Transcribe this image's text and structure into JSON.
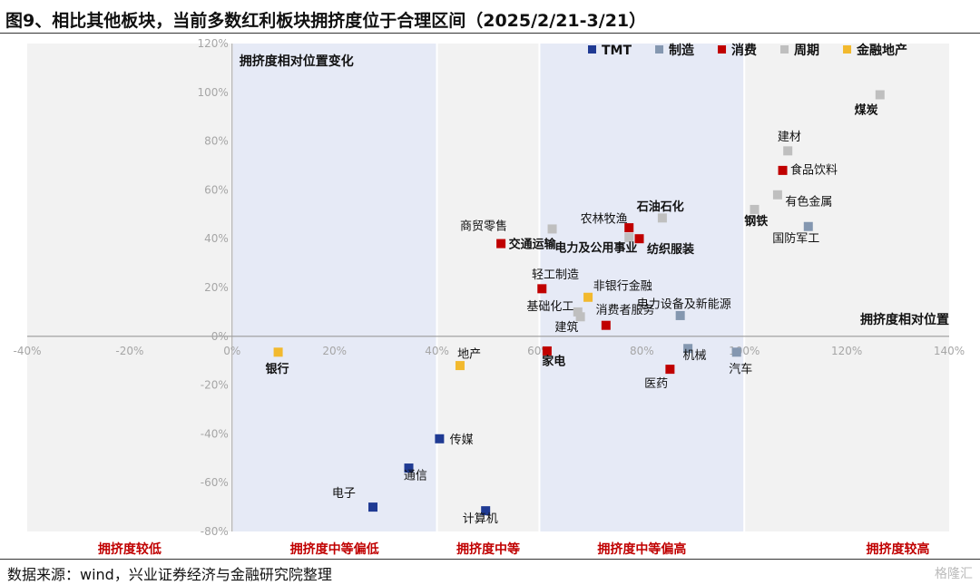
{
  "title": "图9、相比其他板块，当前多数红利板块拥挤度位于合理区间（2025/2/21-3/21）",
  "source": "数据来源：wind，兴业证券经济与金融研究院整理",
  "watermark": "格隆汇",
  "chart_data": {
    "type": "scatter",
    "xlim": [
      -40,
      140
    ],
    "ylim": [
      -80,
      120
    ],
    "x_ticks": [
      -40,
      -20,
      0,
      20,
      40,
      60,
      80,
      100,
      120,
      140
    ],
    "y_ticks": [
      -80,
      -60,
      -40,
      -20,
      0,
      20,
      40,
      60,
      80,
      100,
      120
    ],
    "tick_suffix": "%",
    "ylabel": "拥挤度相对位置变化",
    "xlabel": "拥挤度相对位置",
    "legend_position": "top-right",
    "bands": [
      {
        "from": 0,
        "to": 40,
        "shaded": true,
        "label": "拥挤度中等偏低"
      },
      {
        "from": 60,
        "to": 100,
        "shaded": true,
        "label": "拥挤度中等偏高"
      }
    ],
    "band_labels": [
      {
        "x": -20,
        "text": "拥挤度较低"
      },
      {
        "x": 20,
        "text": "拥挤度中等偏低"
      },
      {
        "x": 50,
        "text": "拥挤度中等"
      },
      {
        "x": 80,
        "text": "拥挤度中等偏高"
      },
      {
        "x": 130,
        "text": "拥挤度较高"
      }
    ],
    "series": [
      {
        "name": "TMT",
        "color": "#1f3a93",
        "points": [
          {
            "x": 40.5,
            "y": -42,
            "label": "传媒",
            "bold": false,
            "lx": 2,
            "ly": 0
          },
          {
            "x": 34.5,
            "y": -54,
            "label": "通信",
            "bold": false,
            "lx": -1,
            "ly": -2.8
          },
          {
            "x": 27.5,
            "y": -70,
            "label": "电子",
            "bold": false,
            "lx": -8,
            "ly": 6
          },
          {
            "x": 49.5,
            "y": -71.5,
            "label": "计算机",
            "bold": false,
            "lx": -4.5,
            "ly": -3
          }
        ]
      },
      {
        "name": "制造",
        "color": "#8497b0",
        "points": [
          {
            "x": 89,
            "y": -5,
            "label": "机械",
            "bold": false,
            "lx": -1,
            "ly": -2.5
          },
          {
            "x": 98.5,
            "y": -6.5,
            "label": "汽车",
            "bold": false,
            "lx": -1.5,
            "ly": -6.5
          },
          {
            "x": 112.5,
            "y": 45,
            "label": "国防军工",
            "bold": false,
            "lx": -7,
            "ly": -4.5
          },
          {
            "x": 87.5,
            "y": 8.5,
            "label": "电力设备及新能源",
            "bold": false,
            "lx": -8.5,
            "ly": 5
          }
        ]
      },
      {
        "name": "消费",
        "color": "#c00000",
        "points": [
          {
            "x": 107.5,
            "y": 68,
            "label": "食品饮料",
            "bold": false,
            "lx": 1.5,
            "ly": 0.5
          },
          {
            "x": 52.5,
            "y": 38,
            "label": "交通运输",
            "bold": true,
            "lx": 1.5,
            "ly": 0
          },
          {
            "x": 77.5,
            "y": 44.5,
            "label": "农林牧渔",
            "bold": false,
            "lx": -9.5,
            "ly": 4
          },
          {
            "x": 79.5,
            "y": 40,
            "label": "纺织服装",
            "bold": true,
            "lx": 1.5,
            "ly": -4
          },
          {
            "x": 60.5,
            "y": 19.5,
            "label": "轻工制造",
            "bold": false,
            "lx": -2,
            "ly": 6
          },
          {
            "x": 61.5,
            "y": -6,
            "label": "家电",
            "bold": true,
            "lx": -1,
            "ly": -4
          },
          {
            "x": 73,
            "y": 4.5,
            "label": "消费者服务",
            "bold": false,
            "lx": -2,
            "ly": 6.5
          },
          {
            "x": 85.5,
            "y": -13.5,
            "label": "医药",
            "bold": false,
            "lx": -5,
            "ly": -5.5
          }
        ]
      },
      {
        "name": "周期",
        "color": "#bfbfbf",
        "points": [
          {
            "x": 126.5,
            "y": 99,
            "label": "煤炭",
            "bold": true,
            "lx": -5,
            "ly": -6
          },
          {
            "x": 108.5,
            "y": 76,
            "label": "建材",
            "bold": false,
            "lx": -2,
            "ly": 6
          },
          {
            "x": 106.5,
            "y": 58,
            "label": "有色金属",
            "bold": false,
            "lx": 1.5,
            "ly": -2.5
          },
          {
            "x": 102,
            "y": 52,
            "label": "钢铁",
            "bold": true,
            "lx": -2,
            "ly": -4.5
          },
          {
            "x": 84,
            "y": 48.5,
            "label": "石油石化",
            "bold": true,
            "lx": -5,
            "ly": 5
          },
          {
            "x": 62.5,
            "y": 44,
            "label": "商贸零售",
            "bold": false,
            "lx": -18,
            "ly": 1.5
          },
          {
            "x": 77.5,
            "y": 40.5,
            "label": "电力及公用事业",
            "bold": true,
            "lx": -14.5,
            "ly": -4
          },
          {
            "x": 67.5,
            "y": 10,
            "label": "基础化工",
            "bold": false,
            "lx": -10,
            "ly": 2.5
          },
          {
            "x": 68,
            "y": 8,
            "label": "建筑",
            "bold": false,
            "lx": -5,
            "ly": -4
          }
        ]
      },
      {
        "name": "金融地产",
        "color": "#f2b92e",
        "points": [
          {
            "x": 9,
            "y": -6.5,
            "label": "银行",
            "bold": true,
            "lx": -2.5,
            "ly": -6.5
          },
          {
            "x": 44.5,
            "y": -12,
            "label": "地产",
            "bold": false,
            "lx": -0.5,
            "ly": 5
          },
          {
            "x": 69.5,
            "y": 16,
            "label": "非银行金融",
            "bold": false,
            "lx": 1,
            "ly": 5
          }
        ]
      }
    ]
  }
}
